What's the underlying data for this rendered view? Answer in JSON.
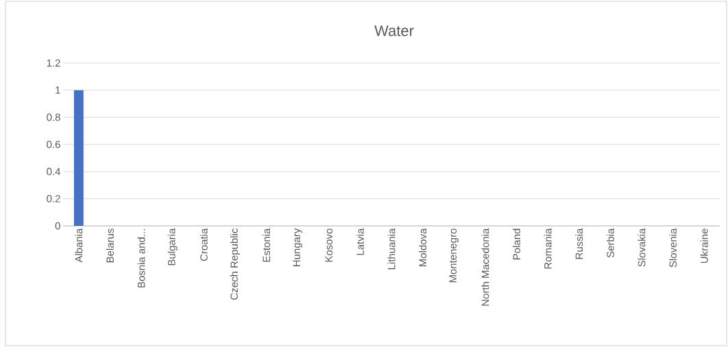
{
  "chart_data": {
    "type": "bar",
    "title": "Water",
    "categories": [
      "Albania",
      "Belarus",
      "Bosnia and...",
      "Bulgaria",
      "Croatia",
      "Czech Republic",
      "Estonia",
      "Hungary",
      "Kosovo",
      "Latvia",
      "Lithuania",
      "Moldova",
      "Montenegro",
      "North Macedonia",
      "Poland",
      "Romania",
      "Russia",
      "Serbia",
      "Slovakia",
      "Slovenia",
      "Ukraine"
    ],
    "values": [
      1,
      0,
      0,
      0,
      0,
      0,
      0,
      0,
      0,
      0,
      0,
      0,
      0,
      0,
      0,
      0,
      0,
      0,
      0,
      0,
      0
    ],
    "color": "#4472c4",
    "ylim": [
      0,
      1.2
    ],
    "yticks": [
      0,
      0.2,
      0.4,
      0.6,
      0.8,
      1,
      1.2
    ],
    "grid": "y"
  }
}
